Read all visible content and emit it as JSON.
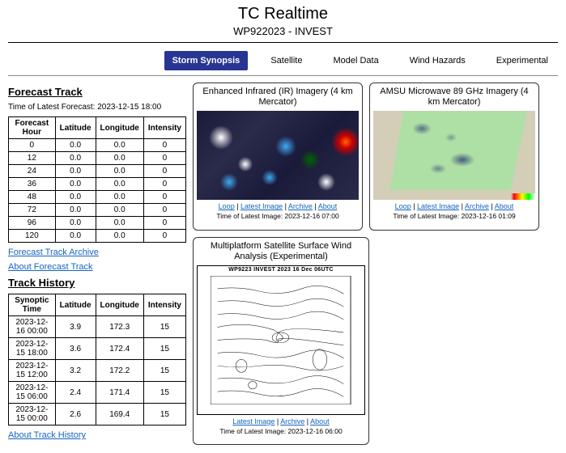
{
  "header": {
    "title": "TC Realtime",
    "storm": "WP922023 - INVEST"
  },
  "tabs": {
    "items": [
      "Storm Synopsis",
      "Satellite",
      "Model Data",
      "Wind Hazards",
      "Experimental"
    ],
    "selected_index": 0,
    "selected_bg": "#283593",
    "selected_fg": "#ffffff"
  },
  "forecast_track": {
    "heading": "Forecast Track",
    "latest_label": "Time of Latest Forecast: 2023-12-15 18:00",
    "columns": [
      "Forecast Hour",
      "Latitude",
      "Longitude",
      "Intensity"
    ],
    "rows": [
      [
        "0",
        "0.0",
        "0.0",
        "0"
      ],
      [
        "12",
        "0.0",
        "0.0",
        "0"
      ],
      [
        "24",
        "0.0",
        "0.0",
        "0"
      ],
      [
        "36",
        "0.0",
        "0.0",
        "0"
      ],
      [
        "48",
        "0.0",
        "0.0",
        "0"
      ],
      [
        "72",
        "0.0",
        "0.0",
        "0"
      ],
      [
        "96",
        "0.0",
        "0.0",
        "0"
      ],
      [
        "120",
        "0.0",
        "0.0",
        "0"
      ]
    ],
    "archive_link": "Forecast Track Archive",
    "about_link": "About Forecast Track"
  },
  "track_history": {
    "heading": "Track History",
    "columns": [
      "Synoptic Time",
      "Latitude",
      "Longitude",
      "Intensity"
    ],
    "rows": [
      [
        "2023-12-16 00:00",
        "3.9",
        "172.3",
        "15"
      ],
      [
        "2023-12-15 18:00",
        "3.6",
        "172.4",
        "15"
      ],
      [
        "2023-12-15 12:00",
        "3.2",
        "172.2",
        "15"
      ],
      [
        "2023-12-15 06:00",
        "2.4",
        "171.4",
        "15"
      ],
      [
        "2023-12-15 00:00",
        "2.6",
        "169.4",
        "15"
      ]
    ],
    "about_link": "About Track History"
  },
  "panels": {
    "ir": {
      "title": "Enhanced Infrared (IR) Imagery (4 km Mercator)",
      "links": [
        "Loop",
        "Latest Image",
        "Archive",
        "About"
      ],
      "time": "Time of Latest Image: 2023-12-16 07:00"
    },
    "amsu": {
      "title": "AMSU Microwave 89 GHz Imagery (4 km Mercator)",
      "links": [
        "Loop",
        "Latest Image",
        "Archive",
        "About"
      ],
      "time": "Time of Latest Image: 2023-12-16 01:09"
    },
    "wind": {
      "title": "Multiplatform Satellite Surface Wind Analysis (Experimental)",
      "img_header": "WP9223    INVEST    2023  16 Dec  06UTC",
      "links": [
        "Latest Image",
        "Archive",
        "About"
      ],
      "time": "Time of Latest Image: 2023-12-16 06:00"
    }
  },
  "colors": {
    "link": "#1565c0",
    "border": "#000000",
    "background": "#ffffff"
  }
}
